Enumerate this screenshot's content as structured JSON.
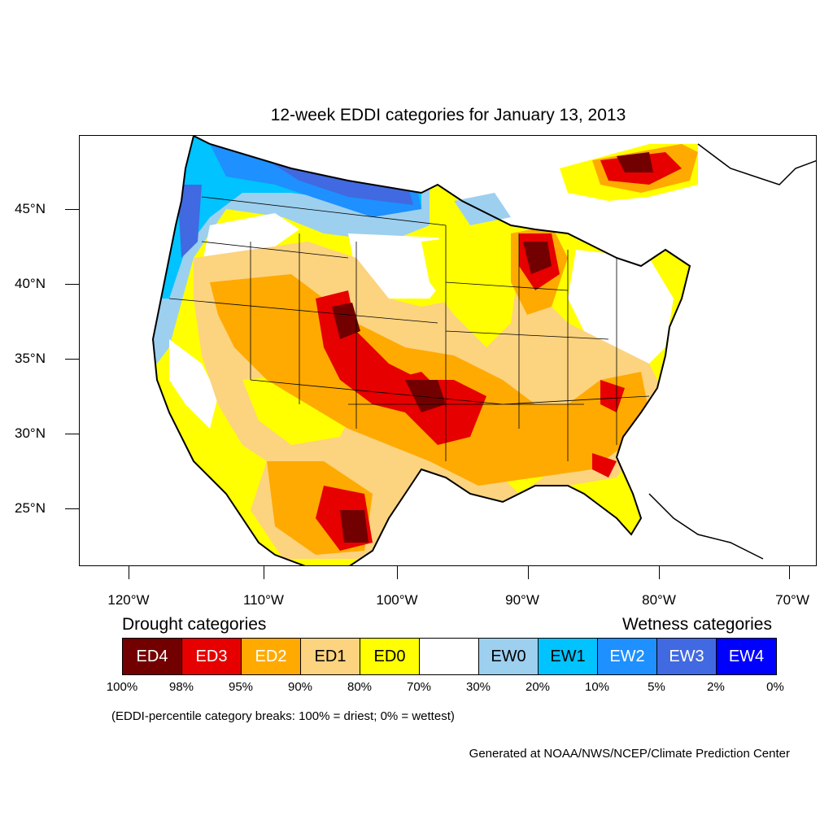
{
  "title": "12-week EDDI categories for January 13, 2013",
  "latitude_labels": [
    "45°N",
    "40°N",
    "35°N",
    "30°N",
    "25°N"
  ],
  "longitude_labels": [
    "120°W",
    "110°W",
    "100°W",
    "90°W",
    "80°W",
    "70°W"
  ],
  "legend": {
    "drought_heading": "Drought categories",
    "wetness_heading": "Wetness categories",
    "categories": [
      {
        "label": "ED4",
        "color": "#730000",
        "text_color": "#ffffff"
      },
      {
        "label": "ED3",
        "color": "#e60000",
        "text_color": "#ffffff"
      },
      {
        "label": "ED2",
        "color": "#ffaa00",
        "text_color": "#ffffff"
      },
      {
        "label": "ED1",
        "color": "#fcd37f",
        "text_color": "#000000"
      },
      {
        "label": "ED0",
        "color": "#ffff00",
        "text_color": "#000000"
      },
      {
        "label": "",
        "color": "#ffffff",
        "text_color": "#000000"
      },
      {
        "label": "EW0",
        "color": "#9dcfef",
        "text_color": "#000000"
      },
      {
        "label": "EW1",
        "color": "#00c3ff",
        "text_color": "#000000"
      },
      {
        "label": "EW2",
        "color": "#1e90ff",
        "text_color": "#ffffff"
      },
      {
        "label": "EW3",
        "color": "#4169e1",
        "text_color": "#ffffff"
      },
      {
        "label": "EW4",
        "color": "#0000ff",
        "text_color": "#ffffff"
      }
    ],
    "breaks": [
      "100%",
      "98%",
      "95%",
      "90%",
      "80%",
      "70%",
      "30%",
      "20%",
      "10%",
      "5%",
      "2%",
      "0%"
    ]
  },
  "note": "(EDDI-percentile category breaks: 100% = driest; 0% = wettest)",
  "credit": "Generated at NOAA/NWS/NCEP/Climate Prediction Center"
}
